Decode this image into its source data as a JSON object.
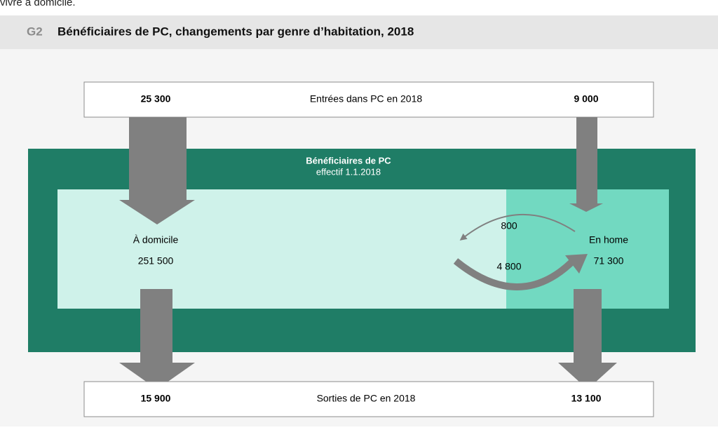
{
  "intro_fragment": "vivre à domicile.",
  "header": {
    "label": "G2",
    "title": "Bénéficiaires de PC, changements par genre d’habitation, 2018"
  },
  "entries": {
    "label": "Entrées dans PC en 2018",
    "home_value": "25 300",
    "care_value": "9 000"
  },
  "population": {
    "title": "Bénéficiaires de PC",
    "subtitle": "effectif 1.1.2018",
    "home": {
      "label": "À domicile",
      "value": "251 500"
    },
    "care": {
      "label": "En home",
      "value": "71 300"
    },
    "transfers": {
      "care_to_home": "800",
      "home_to_care": "4 800"
    }
  },
  "exits": {
    "label": "Sorties de PC en 2018",
    "home_value": "15 900",
    "care_value": "13 100"
  }
}
